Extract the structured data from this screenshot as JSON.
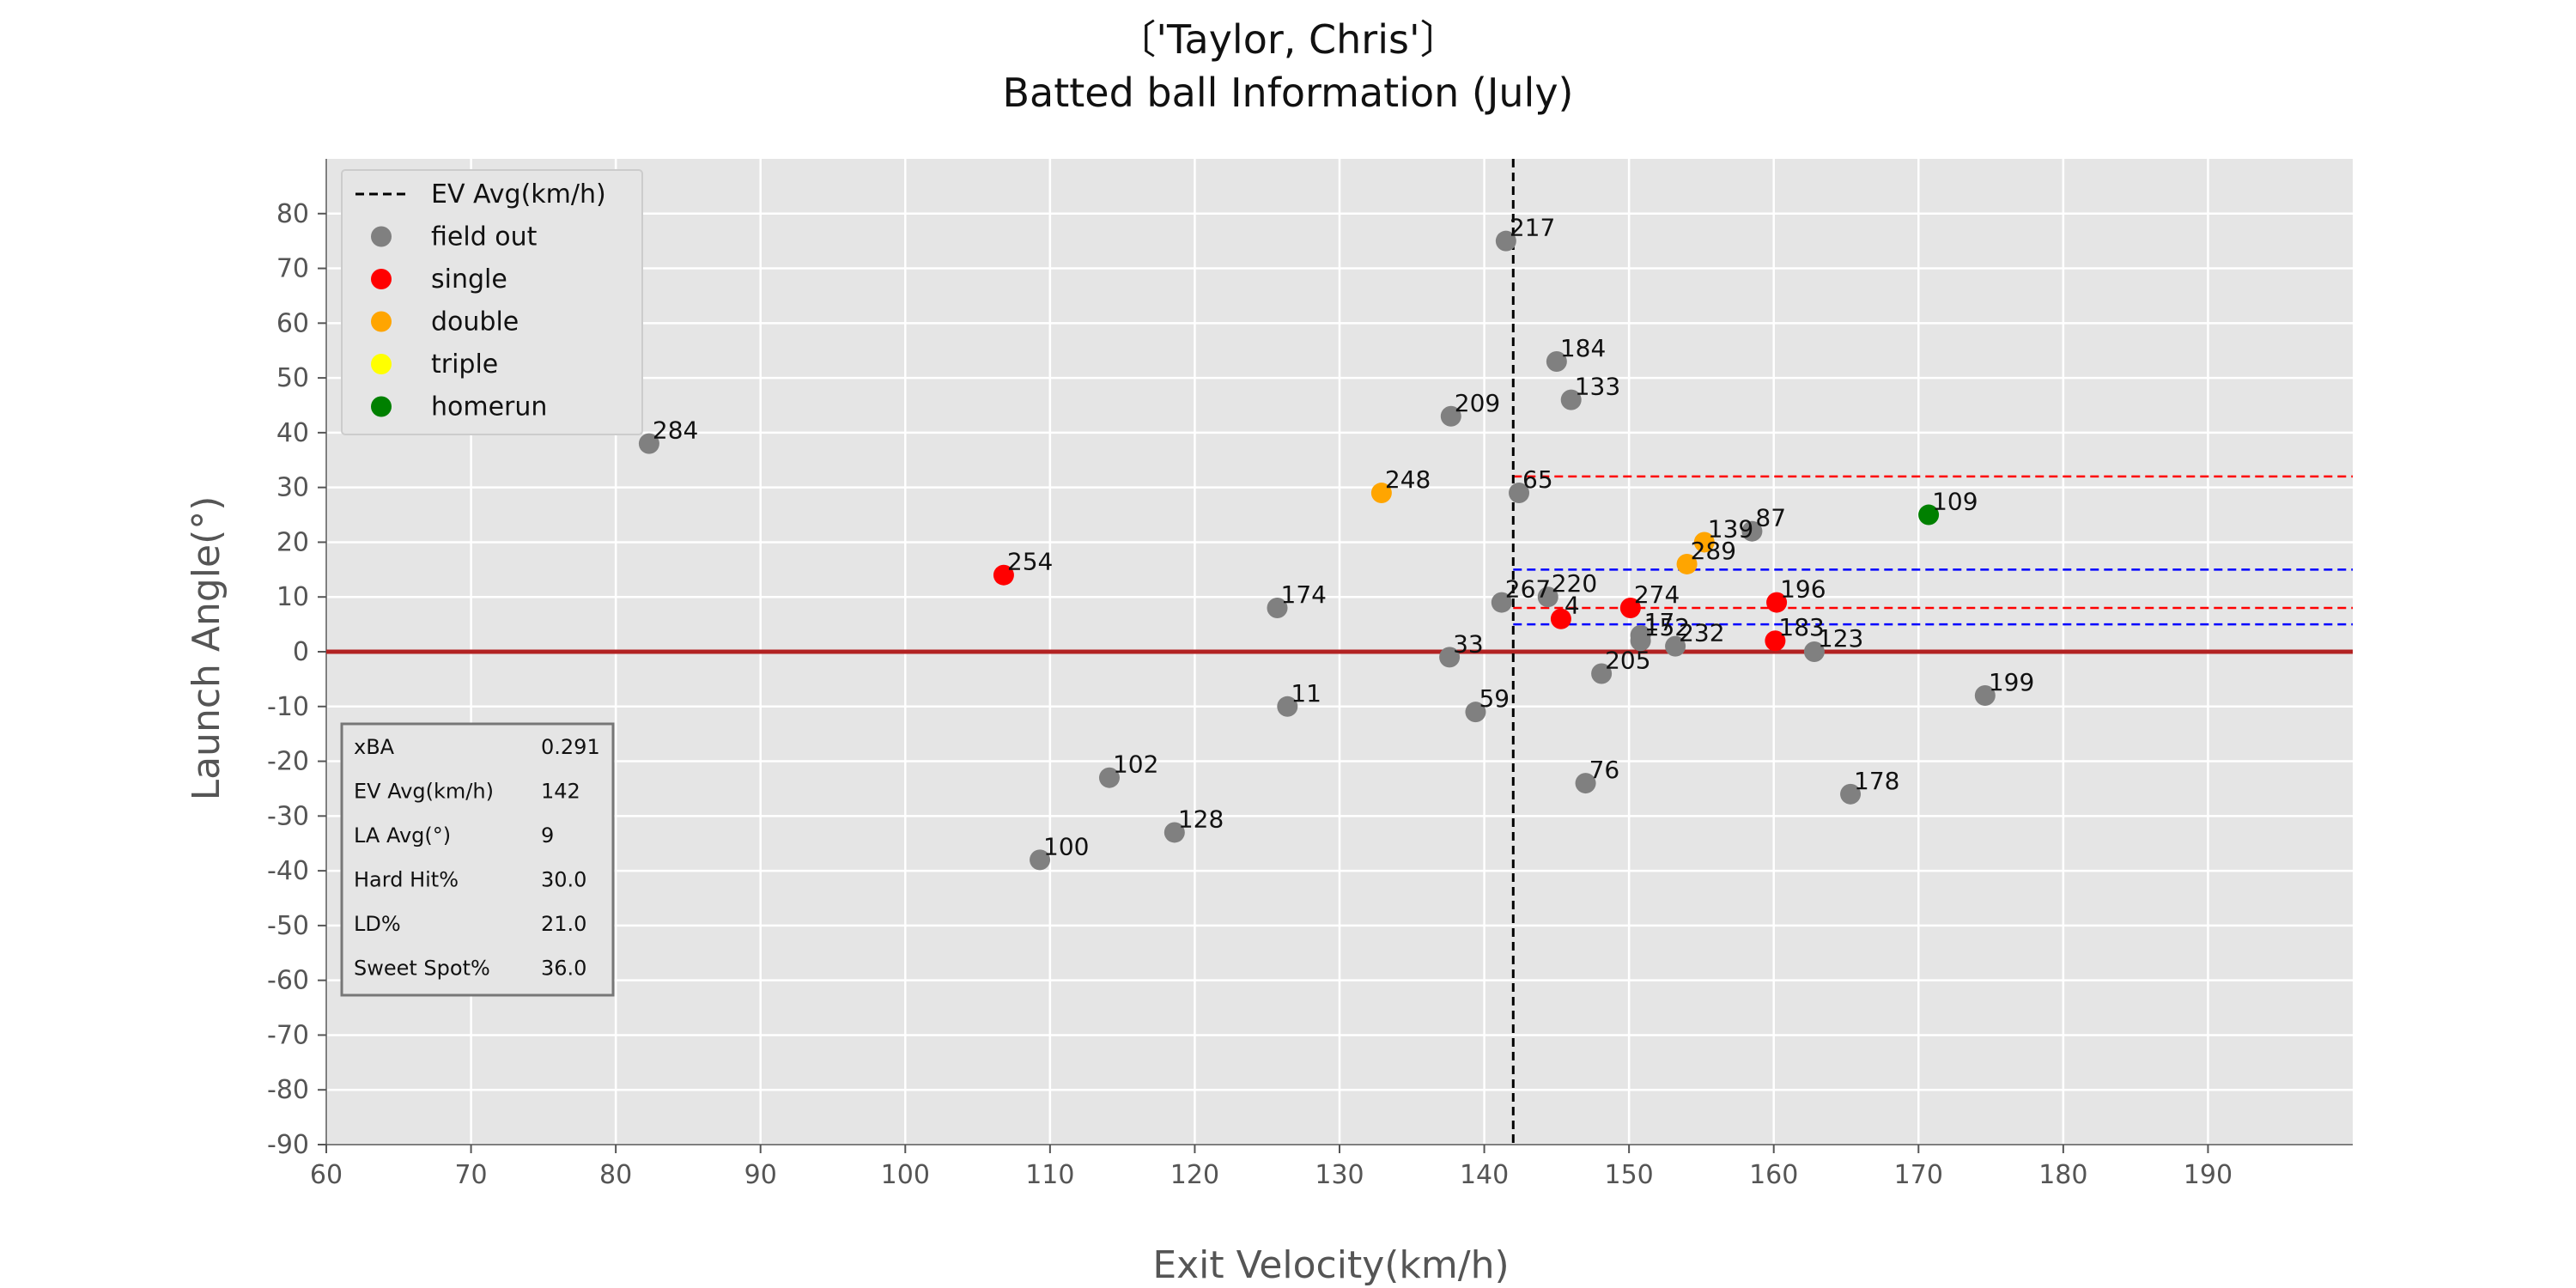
{
  "chart_data": {
    "type": "scatter",
    "title_lines": [
      "〔'Taylor, Chris'〕",
      "Batted ball Information (July)"
    ],
    "xlabel": "Exit Velocity(km/h)",
    "ylabel": "Launch Angle(°)",
    "xlim": [
      60,
      200
    ],
    "ylim": [
      -90,
      90
    ],
    "xticks": [
      60,
      70,
      80,
      90,
      100,
      110,
      120,
      130,
      140,
      150,
      160,
      170,
      180,
      190
    ],
    "yticks": [
      80,
      70,
      60,
      50,
      40,
      30,
      20,
      10,
      0,
      -10,
      -20,
      -30,
      -40,
      -50,
      -60,
      -70,
      -80,
      -90
    ],
    "grid": true,
    "legend_position": "top-left",
    "legend": [
      {
        "label": "EV Avg(km/h)",
        "kind": "dashed-line",
        "color": "#000000"
      },
      {
        "label": "field out",
        "kind": "marker",
        "color": "#808080"
      },
      {
        "label": "single",
        "kind": "marker",
        "color": "#ff0000"
      },
      {
        "label": "double",
        "kind": "marker",
        "color": "#ffa500"
      },
      {
        "label": "triple",
        "kind": "marker",
        "color": "#ffff00"
      },
      {
        "label": "homerun",
        "kind": "marker",
        "color": "#008000"
      }
    ],
    "colors": {
      "field out": "#808080",
      "single": "#ff0000",
      "double": "#ffa500",
      "triple": "#ffff00",
      "homerun": "#008000",
      "ev_avg_line": "#000000",
      "zero_line": "#b22222",
      "red_zone": "#ff0000",
      "blue_zone": "#0000ff"
    },
    "ev_avg": 142,
    "zero_line_y": 0,
    "ref_lines": [
      {
        "y": 32,
        "x_start": 142,
        "color": "red"
      },
      {
        "y": 15,
        "x_start": 142,
        "color": "blue"
      },
      {
        "y": 8,
        "x_start": 142,
        "color": "red"
      },
      {
        "y": 5,
        "x_start": 142,
        "color": "blue"
      }
    ],
    "points": [
      {
        "id": "217",
        "x": 141.5,
        "y": 75,
        "result": "field out"
      },
      {
        "id": "184",
        "x": 145,
        "y": 53,
        "result": "field out"
      },
      {
        "id": "133",
        "x": 146,
        "y": 46,
        "result": "field out"
      },
      {
        "id": "209",
        "x": 137.7,
        "y": 43,
        "result": "field out"
      },
      {
        "id": "284",
        "x": 82.3,
        "y": 38,
        "result": "field out"
      },
      {
        "id": "248",
        "x": 132.9,
        "y": 29,
        "result": "double"
      },
      {
        "id": "65",
        "x": 142.4,
        "y": 29,
        "result": "field out"
      },
      {
        "id": "109",
        "x": 170.7,
        "y": 25,
        "result": "homerun"
      },
      {
        "id": "87",
        "x": 158.5,
        "y": 22,
        "result": "field out"
      },
      {
        "id": "139",
        "x": 155.2,
        "y": 20,
        "result": "double"
      },
      {
        "id": "289",
        "x": 154,
        "y": 16,
        "result": "double"
      },
      {
        "id": "254",
        "x": 106.8,
        "y": 14,
        "result": "single"
      },
      {
        "id": "220",
        "x": 144.4,
        "y": 10,
        "result": "field out"
      },
      {
        "id": "267",
        "x": 141.2,
        "y": 9,
        "result": "field out"
      },
      {
        "id": "196",
        "x": 160.2,
        "y": 9,
        "result": "single"
      },
      {
        "id": "174",
        "x": 125.7,
        "y": 8,
        "result": "field out"
      },
      {
        "id": "274",
        "x": 150.1,
        "y": 8,
        "result": "single"
      },
      {
        "id": "4",
        "x": 145.3,
        "y": 6,
        "result": "single"
      },
      {
        "id": "17",
        "x": 150.8,
        "y": 3,
        "result": "field out"
      },
      {
        "id": "152",
        "x": 150.8,
        "y": 2,
        "result": "field out"
      },
      {
        "id": "183",
        "x": 160.1,
        "y": 2,
        "result": "single"
      },
      {
        "id": "232",
        "x": 153.2,
        "y": 1,
        "result": "field out"
      },
      {
        "id": "123",
        "x": 162.8,
        "y": 0,
        "result": "field out"
      },
      {
        "id": "33",
        "x": 137.6,
        "y": -1,
        "result": "field out"
      },
      {
        "id": "205",
        "x": 148.1,
        "y": -4,
        "result": "field out"
      },
      {
        "id": "199",
        "x": 174.6,
        "y": -8,
        "result": "field out"
      },
      {
        "id": "11",
        "x": 126.4,
        "y": -10,
        "result": "field out"
      },
      {
        "id": "59",
        "x": 139.4,
        "y": -11,
        "result": "field out"
      },
      {
        "id": "102",
        "x": 114.1,
        "y": -23,
        "result": "field out"
      },
      {
        "id": "76",
        "x": 147,
        "y": -24,
        "result": "field out"
      },
      {
        "id": "178",
        "x": 165.3,
        "y": -26,
        "result": "field out"
      },
      {
        "id": "128",
        "x": 118.6,
        "y": -33,
        "result": "field out"
      },
      {
        "id": "100",
        "x": 109.3,
        "y": -38,
        "result": "field out"
      }
    ],
    "stats": [
      {
        "label": "xBA",
        "value": "0.291"
      },
      {
        "label": "EV Avg(km/h)",
        "value": "142"
      },
      {
        "label": "LA Avg(°)",
        "value": "9"
      },
      {
        "label": "Hard Hit%",
        "value": "30.0"
      },
      {
        "label": "LD%",
        "value": "21.0"
      },
      {
        "label": "Sweet Spot%",
        "value": "36.0"
      }
    ]
  }
}
